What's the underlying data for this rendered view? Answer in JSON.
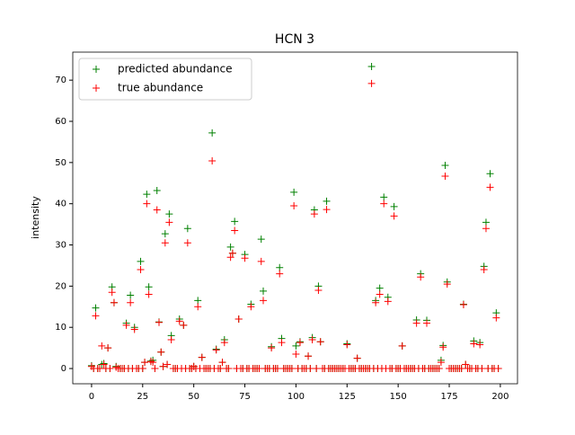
{
  "chart_data": {
    "type": "scatter",
    "title": "HCN 3",
    "y_label": "intensity",
    "x": [
      0,
      1,
      2,
      3,
      4,
      5,
      6,
      7,
      8,
      9,
      10,
      11,
      12,
      13,
      14,
      15,
      16,
      17,
      18,
      19,
      20,
      21,
      22,
      23,
      24,
      25,
      26,
      27,
      28,
      29,
      30,
      31,
      32,
      33,
      34,
      35,
      36,
      37,
      38,
      39,
      40,
      41,
      42,
      43,
      44,
      45,
      46,
      47,
      48,
      49,
      50,
      51,
      52,
      53,
      54,
      55,
      56,
      57,
      58,
      59,
      60,
      61,
      62,
      63,
      64,
      65,
      66,
      67,
      68,
      69,
      70,
      71,
      72,
      73,
      74,
      75,
      76,
      77,
      78,
      79,
      80,
      81,
      82,
      83,
      84,
      85,
      86,
      87,
      88,
      89,
      90,
      91,
      92,
      93,
      94,
      95,
      96,
      97,
      98,
      99,
      100,
      101,
      102,
      103,
      104,
      105,
      106,
      107,
      108,
      109,
      110,
      111,
      112,
      113,
      114,
      115,
      116,
      117,
      118,
      119,
      120,
      121,
      122,
      123,
      124,
      125,
      126,
      127,
      128,
      129,
      130,
      131,
      132,
      133,
      134,
      135,
      136,
      137,
      138,
      139,
      140,
      141,
      142,
      143,
      144,
      145,
      146,
      147,
      148,
      149,
      150,
      151,
      152,
      153,
      154,
      155,
      156,
      157,
      158,
      159,
      160,
      161,
      162,
      163,
      164,
      165,
      166,
      167,
      168,
      169,
      170,
      171,
      172,
      173,
      174,
      175,
      176,
      177,
      178,
      179,
      180,
      181,
      182,
      183,
      184,
      185,
      186,
      187,
      188,
      189,
      190,
      191,
      192,
      193,
      194,
      195,
      196,
      197,
      198,
      199
    ],
    "series": [
      {
        "name": "predicted abundance",
        "color": "#008000",
        "values": [
          0.7,
          0,
          14.7,
          0,
          0,
          1,
          1.2,
          0,
          5,
          0,
          19.8,
          16,
          0.5,
          0,
          0,
          0,
          0,
          11,
          0,
          17.8,
          0,
          10,
          0,
          0,
          26,
          0,
          1.5,
          42.3,
          19.8,
          1.8,
          2,
          0,
          43.2,
          11.3,
          4,
          0.5,
          32.7,
          1,
          37.5,
          8,
          0,
          0,
          0,
          12,
          0,
          10.5,
          0,
          34,
          0,
          0,
          0.5,
          0,
          16.5,
          0,
          2.7,
          0,
          0,
          0,
          0,
          57.2,
          0,
          4.7,
          0,
          0,
          1.5,
          7,
          0,
          0,
          29.5,
          28,
          35.7,
          0,
          12,
          0,
          0,
          27.7,
          0,
          0,
          15.6,
          0,
          0,
          0,
          0,
          31.4,
          18.8,
          0,
          0,
          0,
          5.3,
          0,
          0,
          0,
          24.5,
          7.3,
          0,
          0,
          0,
          0,
          0,
          42.8,
          5.5,
          0,
          6.5,
          0,
          0,
          0,
          3,
          0,
          7.5,
          38.5,
          0,
          20,
          6.5,
          0,
          0,
          40.6,
          0,
          0,
          0,
          0,
          0,
          0,
          0,
          0,
          0,
          6,
          0,
          0,
          0,
          0,
          2.5,
          0,
          0,
          0,
          0,
          0,
          0,
          73.3,
          0,
          16.5,
          0,
          19.5,
          0,
          41.6,
          0,
          17.3,
          0,
          0,
          39.3,
          0,
          0,
          0,
          5.5,
          0,
          0,
          0,
          0,
          0,
          0,
          11.8,
          0,
          23,
          0,
          0,
          11.7,
          0,
          0,
          0,
          0,
          0,
          0,
          2,
          5.6,
          49.3,
          21,
          0,
          0,
          0,
          0,
          0,
          0,
          0,
          15.6,
          1,
          0,
          0,
          0,
          6.7,
          0,
          0,
          6.3,
          0,
          24.8,
          35.5,
          0,
          47.3,
          0,
          0,
          13.5,
          0
        ]
      },
      {
        "name": "true abundance",
        "color": "#ff0000",
        "values": [
          0.5,
          0,
          12.8,
          0,
          0,
          5.5,
          1,
          0,
          5,
          0,
          18.5,
          16,
          0.3,
          0,
          0,
          0,
          0,
          10.5,
          0,
          16,
          0,
          9.5,
          0,
          0,
          24,
          0,
          1.5,
          40,
          18,
          1.7,
          1.5,
          0,
          38.5,
          11.2,
          4,
          0.5,
          30.5,
          1,
          35.5,
          7,
          0,
          0,
          0,
          11.5,
          0,
          10.5,
          0,
          30.5,
          0,
          0,
          0.5,
          0,
          15,
          0,
          2.7,
          0,
          0,
          0,
          0,
          50.4,
          0,
          4.5,
          0,
          0,
          1.5,
          6.3,
          0,
          0,
          27,
          28,
          33.5,
          0,
          12,
          0,
          0,
          26.8,
          0,
          0,
          15,
          0,
          0,
          0,
          0,
          26,
          16.5,
          0,
          0,
          0,
          5,
          0,
          0,
          0,
          23,
          6.3,
          0,
          0,
          0,
          0,
          0,
          39.5,
          3.5,
          0,
          6.3,
          0,
          0,
          0,
          3,
          0,
          7,
          37.5,
          0,
          19,
          6.5,
          0,
          0,
          38.6,
          0,
          0,
          0,
          0,
          0,
          0,
          0,
          0,
          0,
          5.8,
          0,
          0,
          0,
          0,
          2.5,
          0,
          0,
          0,
          0,
          0,
          0,
          69.2,
          0,
          16,
          0,
          18,
          0,
          40,
          0,
          16.3,
          0,
          0,
          37,
          0,
          0,
          0,
          5.5,
          0,
          0,
          0,
          0,
          0,
          0,
          11,
          0,
          22.2,
          0,
          0,
          11,
          0,
          0,
          0,
          0,
          0,
          0,
          1.5,
          5.2,
          46.7,
          20.5,
          0,
          0,
          0,
          0,
          0,
          0,
          0,
          15.5,
          1,
          0,
          0,
          0,
          6,
          0,
          0,
          5.8,
          0,
          24,
          34,
          0,
          44,
          0,
          0,
          12.3,
          0
        ]
      }
    ],
    "xlim": [
      -9.2,
      208.4
    ],
    "ylim": [
      -3.7,
      76.8
    ],
    "xticks": [
      0,
      25,
      50,
      75,
      100,
      125,
      150,
      175,
      200
    ],
    "yticks": [
      0,
      10,
      20,
      30,
      40,
      50,
      60,
      70
    ],
    "legend": "upper left",
    "marker": "+"
  }
}
